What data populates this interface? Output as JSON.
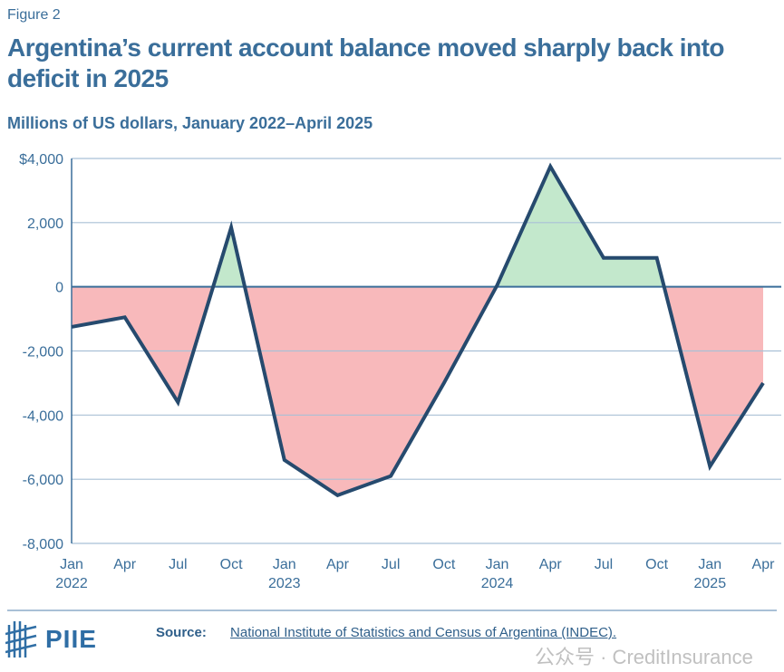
{
  "figure_label": "Figure 2",
  "title": "Argentina’s current account balance moved sharply back into deficit in 2025",
  "subtitle": "Millions of US dollars, January 2022–April 2025",
  "footer": {
    "logo_text": "PIIE",
    "source_label": "Source:",
    "source_link": "National Institute of Statistics and Census of Argentina (INDEC).",
    "watermark": "公众号 · CreditInsurance"
  },
  "colors": {
    "line": "#264a6e",
    "positive_fill": "#c3e8cc",
    "negative_fill": "#f8b9bb",
    "grid": "#a9c0d6",
    "text": "#3a6e9a"
  },
  "chart_data": {
    "type": "area",
    "x": [
      "Jan 2022",
      "Apr 2022",
      "Jul 2022",
      "Oct 2022",
      "Jan 2023",
      "Apr 2023",
      "Jul 2023",
      "Oct 2023",
      "Jan 2024",
      "Apr 2024",
      "Jul 2024",
      "Oct 2024",
      "Jan 2025",
      "Apr 2025"
    ],
    "values": [
      -1250,
      -950,
      -3600,
      1850,
      -5400,
      -6500,
      -5900,
      -3000,
      50,
      3750,
      900,
      900,
      -5600,
      -3000
    ],
    "x_tick_labels": [
      {
        "month": "Jan",
        "year": "2022"
      },
      {
        "month": "Apr",
        "year": ""
      },
      {
        "month": "Jul",
        "year": ""
      },
      {
        "month": "Oct",
        "year": ""
      },
      {
        "month": "Jan",
        "year": "2023"
      },
      {
        "month": "Apr",
        "year": ""
      },
      {
        "month": "Jul",
        "year": ""
      },
      {
        "month": "Oct",
        "year": ""
      },
      {
        "month": "Jan",
        "year": "2024"
      },
      {
        "month": "Apr",
        "year": ""
      },
      {
        "month": "Jul",
        "year": ""
      },
      {
        "month": "Oct",
        "year": ""
      },
      {
        "month": "Jan",
        "year": "2025"
      },
      {
        "month": "Apr",
        "year": ""
      }
    ],
    "y_ticks": [
      4000,
      2000,
      0,
      -2000,
      -4000,
      -6000,
      -8000
    ],
    "y_tick_labels": [
      "$4,000",
      "2,000",
      "0",
      "-2,000",
      "-4,000",
      "-6,000",
      "-8,000"
    ],
    "ylim": [
      -8000,
      4000
    ],
    "grid": true,
    "fill": "green above zero, red below zero"
  }
}
